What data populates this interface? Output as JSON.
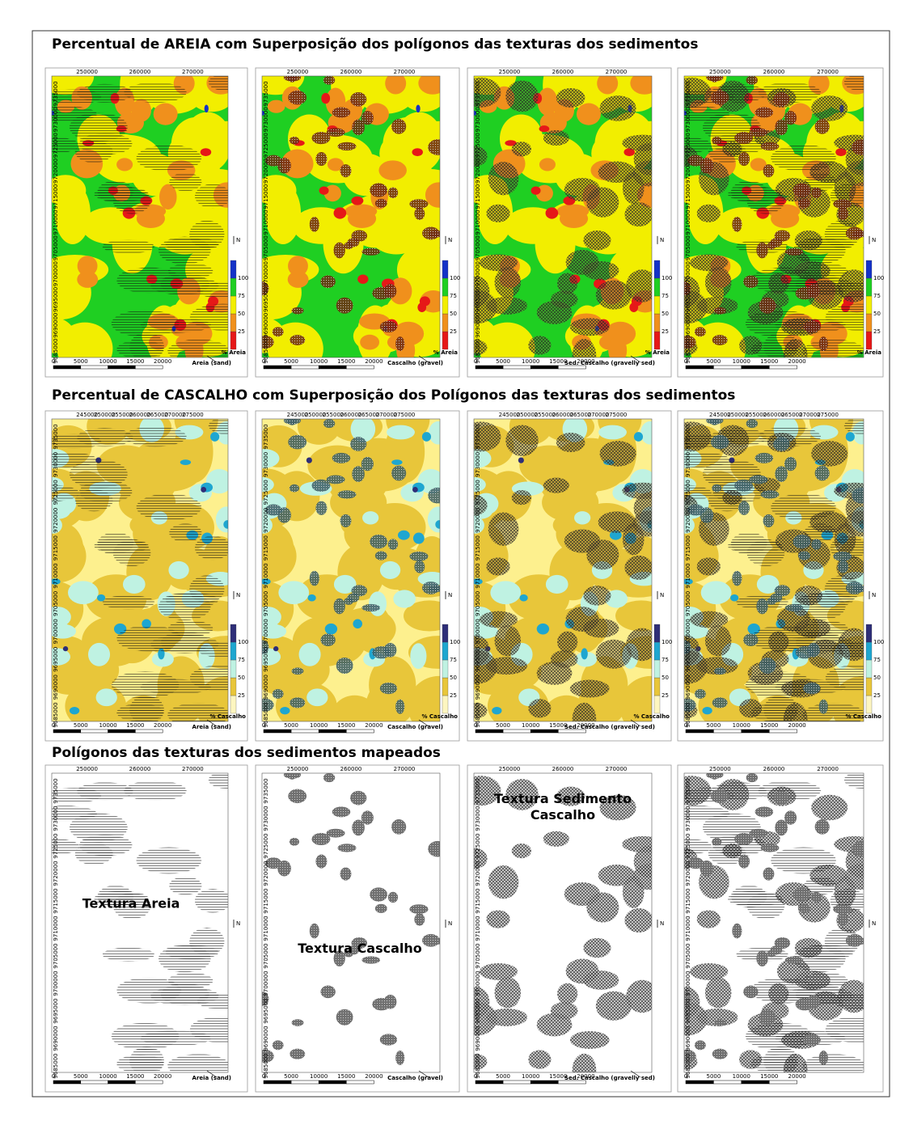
{
  "rows": [
    {
      "title": "Percentual de AREIA com Superposição dos polígonos das texturas dos sedimentos",
      "x_labels": [
        "250000",
        "260000",
        "270000"
      ],
      "legend_title": "% Areia",
      "legend_labels": [
        "100",
        "75",
        "50",
        "25"
      ],
      "panels": [
        {
          "note": "Areia (sand)"
        },
        {
          "note": "Cascalho (gravel)"
        },
        {
          "note": "Sed. Cascalho (gravelly sed)"
        },
        {}
      ]
    },
    {
      "title": "Percentual de CASCALHO com Superposição dos Polígonos das texturas dos sedimentos",
      "x_labels": [
        "245000",
        "250000",
        "255000",
        "260000",
        "265000",
        "270000",
        "275000"
      ],
      "legend_title": "% Cascalho",
      "legend_labels": [
        "100",
        "75",
        "50",
        "25"
      ],
      "panels": [
        {
          "note": "Areia (sand)"
        },
        {
          "note": "Cascalho (gravel)"
        },
        {
          "note": "Sed. Cascalho (gravelly sed)"
        },
        {}
      ]
    },
    {
      "title": "Polígonos das texturas dos sedimentos mapeados",
      "x_labels": [
        "250000",
        "260000",
        "270000"
      ],
      "panels": [
        {
          "note": "Areia (sand)",
          "label": "Textura Areia"
        },
        {
          "note": "Cascalho (gravel)",
          "label": "Textura Cascalho"
        },
        {
          "note": "Sed. Cascalho (gravelly sed)",
          "label": "Textura Sedimento Cascalho"
        },
        {}
      ]
    }
  ],
  "y_labels": [
    "9685000",
    "9690000",
    "9695000",
    "9700000",
    "9705000",
    "9710000",
    "9715000",
    "9720000",
    "9725000",
    "9730000",
    "9735000"
  ],
  "scale_labels": [
    "0",
    "5000",
    "10000",
    "15000",
    "20000"
  ],
  "north": "N"
}
